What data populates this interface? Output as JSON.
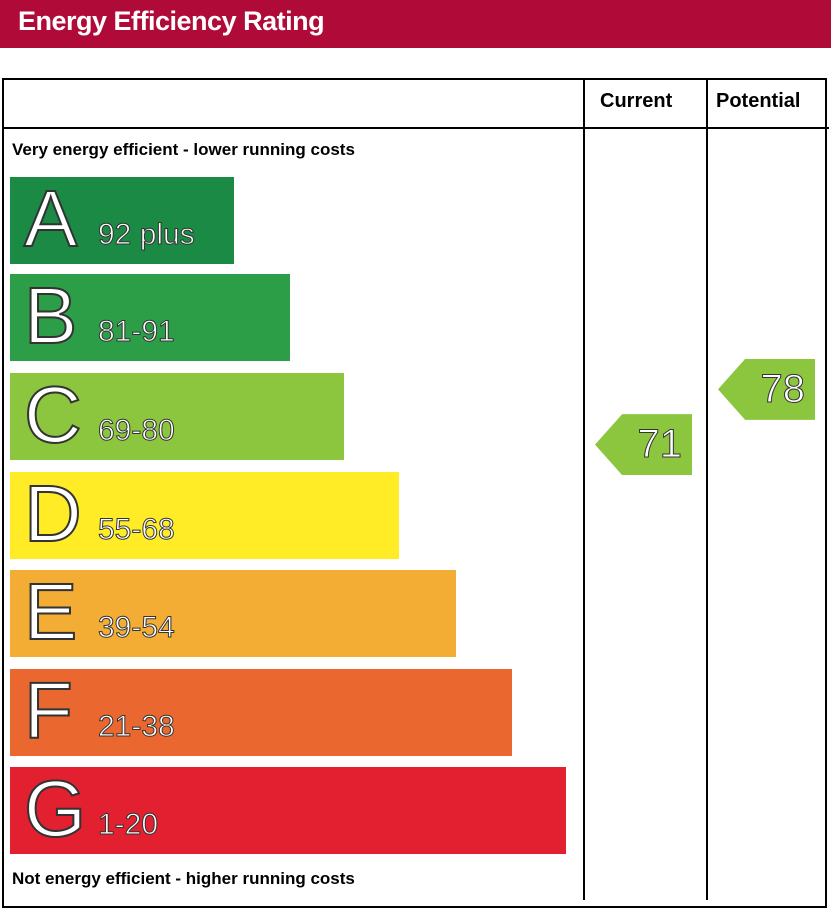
{
  "title": "Energy Efficiency Rating",
  "columns": {
    "current": "Current",
    "potential": "Potential"
  },
  "top_note": "Very energy efficient - lower running costs",
  "bottom_note": "Not energy efficient - higher running costs",
  "chart_data": {
    "type": "bar",
    "bands": [
      {
        "letter": "A",
        "range": "92 plus",
        "min": 92,
        "max": 100,
        "color": "#1b8a45"
      },
      {
        "letter": "B",
        "range": "81-91",
        "min": 81,
        "max": 91,
        "color": "#2c9e48"
      },
      {
        "letter": "C",
        "range": "69-80",
        "min": 69,
        "max": 80,
        "color": "#8cc63e"
      },
      {
        "letter": "D",
        "range": "55-68",
        "min": 55,
        "max": 68,
        "color": "#ffec27"
      },
      {
        "letter": "E",
        "range": "39-54",
        "min": 39,
        "max": 54,
        "color": "#f4ad34"
      },
      {
        "letter": "F",
        "range": "21-38",
        "min": 21,
        "max": 38,
        "color": "#ea672f"
      },
      {
        "letter": "G",
        "range": "1-20",
        "min": 1,
        "max": 20,
        "color": "#e2202f"
      }
    ],
    "current": 71,
    "potential": 78,
    "arrow_color": "#8cc63e"
  }
}
